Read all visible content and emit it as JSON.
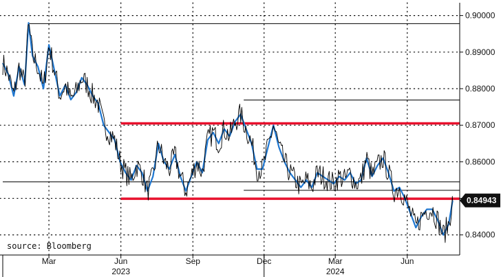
{
  "colors": {
    "price_line": "#000000",
    "trend_line": "#1f77d0",
    "support_resistance": "#e8112d",
    "level_line": "#000000",
    "grid": "#000000",
    "last_price_label_bg": "#111111",
    "last_price_label_text": "#ffffff"
  },
  "source_label": "source: Bloomberg",
  "last_price": {
    "value": 0.84943,
    "label": "0.84943"
  },
  "chart_data": {
    "type": "line",
    "title": "",
    "xlabel": "",
    "ylabel": "",
    "grid": true,
    "y_axis_side": "right",
    "ylim": [
      0.8345,
      0.9035
    ],
    "xlim": [
      "2023-01-01",
      "2024-07-31"
    ],
    "y_ticks": [
      0.84,
      0.85,
      0.86,
      0.87,
      0.88,
      0.89,
      0.9
    ],
    "y_tick_labels": [
      "0.84000",
      "0.85000",
      "0.86000",
      "0.87000",
      "0.88000",
      "0.89000",
      "0.90000"
    ],
    "x_ticks": [
      {
        "date": "2023-03-01",
        "label": "Mar"
      },
      {
        "date": "2023-06-01",
        "label": "Jun"
      },
      {
        "date": "2023-09-01",
        "label": "Sep"
      },
      {
        "date": "2023-12-01",
        "label": "Dec"
      },
      {
        "date": "2024-03-01",
        "label": "Mar"
      },
      {
        "date": "2024-06-01",
        "label": "Jun"
      }
    ],
    "year_labels": [
      {
        "date": "2023-06-01",
        "label": "2023"
      },
      {
        "date": "2024-03-01",
        "label": "2024"
      }
    ],
    "year_separators": [
      "2023-01-01",
      "2023-12-01"
    ],
    "series": [
      {
        "points": [
          [
            "2023-01-01",
            0.887
          ],
          [
            "2023-01-08",
            0.884
          ],
          [
            "2023-01-15",
            0.878
          ],
          [
            "2023-01-22",
            0.886
          ],
          [
            "2023-01-29",
            0.881
          ],
          [
            "2023-02-03",
            0.898
          ],
          [
            "2023-02-08",
            0.889
          ],
          [
            "2023-02-15",
            0.886
          ],
          [
            "2023-02-22",
            0.88
          ],
          [
            "2023-03-01",
            0.892
          ],
          [
            "2023-03-08",
            0.885
          ],
          [
            "2023-03-15",
            0.878
          ],
          [
            "2023-03-22",
            0.881
          ],
          [
            "2023-03-29",
            0.877
          ],
          [
            "2023-04-05",
            0.879
          ],
          [
            "2023-04-12",
            0.883
          ],
          [
            "2023-04-19",
            0.881
          ],
          [
            "2023-04-26",
            0.878
          ],
          [
            "2023-05-03",
            0.876
          ],
          [
            "2023-05-10",
            0.87
          ],
          [
            "2023-05-17",
            0.868
          ],
          [
            "2023-05-24",
            0.866
          ],
          [
            "2023-05-31",
            0.86
          ],
          [
            "2023-06-07",
            0.857
          ],
          [
            "2023-06-14",
            0.855
          ],
          [
            "2023-06-21",
            0.859
          ],
          [
            "2023-06-28",
            0.857
          ],
          [
            "2023-07-05",
            0.852
          ],
          [
            "2023-07-12",
            0.856
          ],
          [
            "2023-07-19",
            0.865
          ],
          [
            "2023-07-26",
            0.86
          ],
          [
            "2023-08-02",
            0.858
          ],
          [
            "2023-08-09",
            0.862
          ],
          [
            "2023-08-16",
            0.856
          ],
          [
            "2023-08-23",
            0.852
          ],
          [
            "2023-08-30",
            0.856
          ],
          [
            "2023-09-06",
            0.86
          ],
          [
            "2023-09-13",
            0.857
          ],
          [
            "2023-09-20",
            0.866
          ],
          [
            "2023-09-27",
            0.868
          ],
          [
            "2023-10-04",
            0.865
          ],
          [
            "2023-10-11",
            0.869
          ],
          [
            "2023-10-18",
            0.867
          ],
          [
            "2023-10-25",
            0.871
          ],
          [
            "2023-11-01",
            0.873
          ],
          [
            "2023-11-08",
            0.869
          ],
          [
            "2023-11-15",
            0.865
          ],
          [
            "2023-11-22",
            0.858
          ],
          [
            "2023-11-29",
            0.858
          ],
          [
            "2023-12-06",
            0.864
          ],
          [
            "2023-12-13",
            0.87
          ],
          [
            "2023-12-20",
            0.864
          ],
          [
            "2023-12-27",
            0.86
          ],
          [
            "2024-01-03",
            0.857
          ],
          [
            "2024-01-10",
            0.855
          ],
          [
            "2024-01-17",
            0.853
          ],
          [
            "2024-01-24",
            0.855
          ],
          [
            "2024-01-31",
            0.853
          ],
          [
            "2024-02-07",
            0.857
          ],
          [
            "2024-02-14",
            0.856
          ],
          [
            "2024-02-21",
            0.855
          ],
          [
            "2024-02-28",
            0.854
          ],
          [
            "2024-03-06",
            0.856
          ],
          [
            "2024-03-13",
            0.855
          ],
          [
            "2024-03-20",
            0.857
          ],
          [
            "2024-03-27",
            0.854
          ],
          [
            "2024-04-03",
            0.855
          ],
          [
            "2024-04-10",
            0.861
          ],
          [
            "2024-04-17",
            0.856
          ],
          [
            "2024-04-24",
            0.859
          ],
          [
            "2024-05-01",
            0.861
          ],
          [
            "2024-05-08",
            0.857
          ],
          [
            "2024-05-15",
            0.852
          ],
          [
            "2024-05-22",
            0.853
          ],
          [
            "2024-05-29",
            0.85
          ],
          [
            "2024-06-05",
            0.846
          ],
          [
            "2024-06-12",
            0.842
          ],
          [
            "2024-06-19",
            0.845
          ],
          [
            "2024-06-26",
            0.847
          ],
          [
            "2024-07-03",
            0.847
          ],
          [
            "2024-07-10",
            0.844
          ],
          [
            "2024-07-17",
            0.84
          ],
          [
            "2024-07-24",
            0.843
          ],
          [
            "2024-07-29",
            0.8494
          ]
        ]
      }
    ],
    "horizontal_levels": [
      {
        "kind": "support_resistance",
        "value": 0.8705,
        "from": "2023-06-01",
        "to": "2024-07-31"
      },
      {
        "kind": "support_resistance",
        "value": 0.8499,
        "from": "2023-06-01",
        "to": "2024-07-31"
      },
      {
        "kind": "level",
        "value": 0.8978,
        "from": "2023-02-03",
        "to": "2024-07-31"
      },
      {
        "kind": "level",
        "value": 0.8769,
        "from": "2023-11-05",
        "to": "2024-07-31"
      },
      {
        "kind": "level",
        "value": 0.8545,
        "from": "2023-01-01",
        "to": "2024-07-31"
      },
      {
        "kind": "level",
        "value": 0.8522,
        "from": "2023-11-05",
        "to": "2024-07-31"
      }
    ]
  }
}
